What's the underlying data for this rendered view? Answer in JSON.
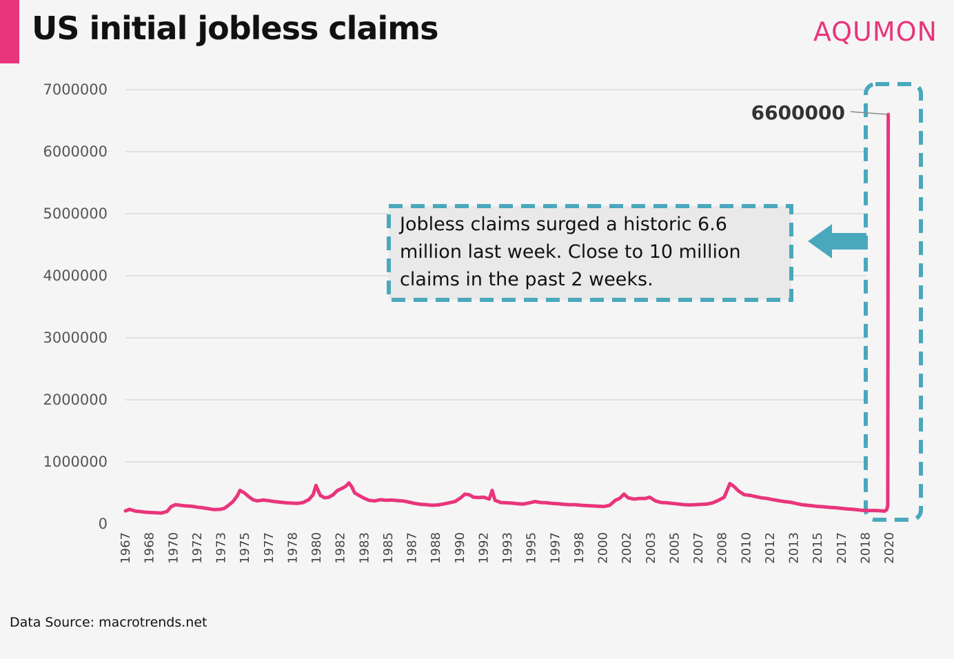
{
  "header": {
    "title": "US initial jobless claims",
    "brand": "AQUMON"
  },
  "footer": {
    "source": "Data Source: macrotrends.net"
  },
  "annotation": {
    "text": "Jobless claims surged a historic 6.6 million last week. Close to 10 million claims in the past 2 weeks.",
    "peak_label": "6600000"
  },
  "colors": {
    "line": "#e8357c",
    "accent": "#e8357c",
    "callout_border": "#4aa8bc",
    "grid": "#d9d9d9"
  },
  "chart_data": {
    "type": "line",
    "title": "US initial jobless claims",
    "xlabel": "",
    "ylabel": "",
    "ylim": [
      0,
      7000000
    ],
    "y_ticks": [
      0,
      1000000,
      2000000,
      3000000,
      4000000,
      5000000,
      6000000,
      7000000
    ],
    "x_tick_labels": [
      "1967",
      "1968",
      "1970",
      "1972",
      "1973",
      "1975",
      "1977",
      "1978",
      "1980",
      "1982",
      "1983",
      "1985",
      "1987",
      "1988",
      "1990",
      "1992",
      "1993",
      "1995",
      "1997",
      "1998",
      "2000",
      "2002",
      "2003",
      "2005",
      "2007",
      "2008",
      "2010",
      "2012",
      "2013",
      "2015",
      "2017",
      "2018",
      "2020"
    ],
    "grid": true,
    "series": [
      {
        "x": [
          1967.0,
          1967.3,
          1967.7,
          1968.0,
          1968.3,
          1968.7,
          1969.0,
          1969.5,
          1969.9,
          1970.2,
          1970.5,
          1970.8,
          1971.2,
          1971.6,
          1972.0,
          1972.4,
          1972.8,
          1973.2,
          1973.6,
          1973.9,
          1974.2,
          1974.5,
          1974.8,
          1975.0,
          1975.3,
          1975.6,
          1975.9,
          1976.2,
          1976.6,
          1977.0,
          1977.4,
          1977.8,
          1978.2,
          1978.6,
          1979.0,
          1979.4,
          1979.8,
          1980.1,
          1980.3,
          1980.6,
          1980.9,
          1981.2,
          1981.5,
          1981.8,
          1982.1,
          1982.4,
          1982.6,
          1982.8,
          1983.0,
          1983.3,
          1983.6,
          1984.0,
          1984.4,
          1984.8,
          1985.2,
          1985.6,
          1986.0,
          1986.4,
          1986.8,
          1987.2,
          1987.6,
          1988.0,
          1988.4,
          1988.8,
          1989.2,
          1989.6,
          1990.0,
          1990.4,
          1990.7,
          1991.0,
          1991.3,
          1991.7,
          1992.0,
          1992.4,
          1992.6,
          1992.8,
          1993.2,
          1993.6,
          1994.0,
          1994.4,
          1994.8,
          1995.2,
          1995.6,
          1996.0,
          1996.4,
          1996.8,
          1997.2,
          1997.6,
          1998.0,
          1998.4,
          1998.8,
          1999.2,
          1999.6,
          2000.0,
          2000.4,
          2000.8,
          2001.2,
          2001.5,
          2001.8,
          2002.1,
          2002.5,
          2002.9,
          2003.3,
          2003.6,
          2004.0,
          2004.4,
          2004.8,
          2005.2,
          2005.6,
          2006.0,
          2006.4,
          2006.8,
          2007.2,
          2007.6,
          2008.0,
          2008.4,
          2008.8,
          2009.0,
          2009.2,
          2009.5,
          2009.8,
          2010.2,
          2010.6,
          2011.0,
          2011.4,
          2011.8,
          2012.2,
          2012.6,
          2013.0,
          2013.4,
          2013.8,
          2014.2,
          2014.6,
          2015.0,
          2015.4,
          2015.8,
          2016.2,
          2016.6,
          2017.0,
          2017.4,
          2017.8,
          2018.2,
          2018.6,
          2019.0,
          2019.4,
          2019.8,
          2020.0,
          2020.15,
          2020.22,
          2020.25
        ],
        "y": [
          210000,
          235000,
          205000,
          200000,
          190000,
          185000,
          180000,
          175000,
          200000,
          280000,
          310000,
          300000,
          290000,
          285000,
          270000,
          260000,
          245000,
          230000,
          235000,
          250000,
          300000,
          360000,
          450000,
          540000,
          500000,
          440000,
          390000,
          370000,
          385000,
          375000,
          360000,
          350000,
          340000,
          335000,
          330000,
          345000,
          390000,
          470000,
          620000,
          460000,
          420000,
          430000,
          470000,
          540000,
          570000,
          610000,
          660000,
          600000,
          500000,
          460000,
          420000,
          380000,
          370000,
          390000,
          380000,
          385000,
          375000,
          370000,
          350000,
          330000,
          315000,
          310000,
          300000,
          305000,
          320000,
          340000,
          360000,
          420000,
          480000,
          470000,
          430000,
          425000,
          430000,
          400000,
          540000,
          380000,
          345000,
          340000,
          335000,
          325000,
          320000,
          340000,
          360000,
          345000,
          340000,
          330000,
          325000,
          315000,
          310000,
          310000,
          300000,
          295000,
          290000,
          285000,
          280000,
          300000,
          380000,
          410000,
          480000,
          420000,
          400000,
          410000,
          410000,
          430000,
          370000,
          345000,
          340000,
          330000,
          320000,
          310000,
          305000,
          310000,
          315000,
          320000,
          340000,
          380000,
          430000,
          540000,
          650000,
          600000,
          530000,
          470000,
          460000,
          440000,
          420000,
          410000,
          390000,
          375000,
          360000,
          350000,
          330000,
          310000,
          300000,
          290000,
          280000,
          275000,
          265000,
          260000,
          250000,
          240000,
          235000,
          225000,
          215000,
          215000,
          215000,
          210000,
          205000,
          230000,
          300000,
          6600000
        ]
      }
    ]
  }
}
